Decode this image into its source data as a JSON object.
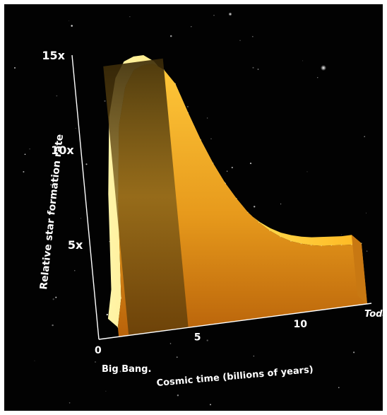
{
  "chart_data": {
    "type": "area",
    "title": "",
    "ylabel": "Relative star formation rate",
    "xlabel": "Cosmic time (billions of years)",
    "x_tick_labels": [
      {
        "x": 0,
        "text": "0"
      },
      {
        "x": 5,
        "text": "5"
      },
      {
        "x": 10,
        "text": "10"
      },
      {
        "x": 13.5,
        "text": "Today"
      }
    ],
    "y_tick_labels": [
      {
        "y": 5,
        "text": "5x"
      },
      {
        "y": 10,
        "text": "10x"
      },
      {
        "y": 15,
        "text": "15x"
      }
    ],
    "annotations": [
      {
        "x": 0,
        "text": "Big Bang."
      }
    ],
    "xlim": [
      0,
      13.5
    ],
    "ylim": [
      0,
      15
    ],
    "highlight_band": {
      "x_start": 1.5,
      "x_end": 4.5
    },
    "series": [
      {
        "x": [
          1.0,
          1.3,
          1.6,
          2.0,
          2.5,
          3.0,
          3.5,
          4.0,
          4.5,
          5.0,
          5.5,
          6.0,
          6.5,
          7.0,
          7.5,
          8.0,
          8.5,
          9.0,
          9.5,
          10.0,
          10.5,
          11.0,
          11.5,
          12.0,
          12.5,
          13.0,
          13.5
        ],
        "values": [
          0.5,
          2.0,
          7.0,
          11.0,
          13.0,
          13.8,
          14.0,
          14.0,
          13.6,
          12.8,
          11.2,
          9.7,
          8.4,
          7.3,
          6.4,
          5.6,
          5.0,
          4.5,
          4.1,
          3.8,
          3.6,
          3.45,
          3.35,
          3.3,
          3.25,
          3.2,
          3.2
        ]
      }
    ]
  }
}
